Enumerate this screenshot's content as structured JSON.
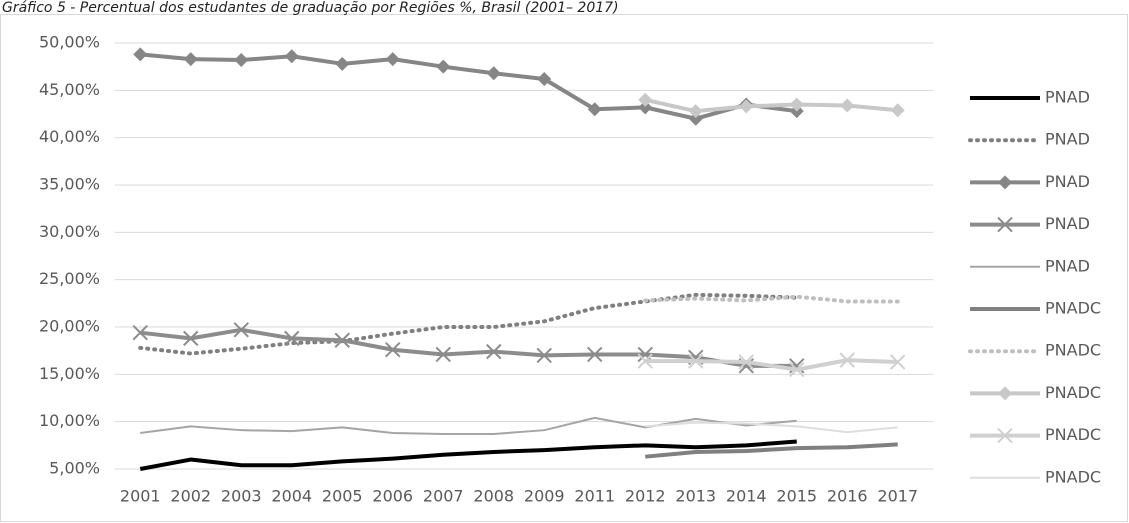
{
  "chart_data": {
    "type": "line",
    "title": "Gráfico 5 - Percentual dos estudantes de graduação por Regiões %, Brasil (2001– 2017)",
    "categories": [
      "2001",
      "2002",
      "2003",
      "2004",
      "2005",
      "2006",
      "2007",
      "2008",
      "2009",
      "2011",
      "2012",
      "2013",
      "2014",
      "2015",
      "2016",
      "2017"
    ],
    "ylim": [
      5,
      50
    ],
    "yticks": [
      {
        "value": 5,
        "label": "5,00%"
      },
      {
        "value": 10,
        "label": "10,00%"
      },
      {
        "value": 15,
        "label": "15,00%"
      },
      {
        "value": 20,
        "label": "20,00%"
      },
      {
        "value": 25,
        "label": "25,00%"
      },
      {
        "value": 30,
        "label": "30,00%"
      },
      {
        "value": 35,
        "label": "35,00%"
      },
      {
        "value": 40,
        "label": "40,00%"
      },
      {
        "value": 45,
        "label": "45,00%"
      },
      {
        "value": 50,
        "label": "50,00%"
      }
    ],
    "grid": true,
    "legend": "right",
    "series": [
      {
        "name": "PNAD",
        "color": "#000000",
        "style": "solid",
        "weight": "thick",
        "marker": "none",
        "values": [
          5.0,
          6.0,
          5.4,
          5.4,
          5.8,
          6.1,
          6.5,
          6.8,
          7.0,
          7.3,
          7.5,
          7.3,
          7.5,
          7.9,
          null,
          null
        ]
      },
      {
        "name": "PNAD",
        "color": "#7f7f7f",
        "style": "dotted",
        "weight": "thick",
        "marker": "none",
        "values": [
          17.8,
          17.2,
          17.7,
          18.3,
          18.5,
          19.3,
          20.0,
          20.0,
          20.6,
          22.0,
          22.7,
          23.4,
          23.3,
          23.1,
          null,
          null
        ]
      },
      {
        "name": "PNAD",
        "color": "#868686",
        "style": "solid",
        "weight": "thick",
        "marker": "diamond",
        "values": [
          48.8,
          48.3,
          48.2,
          48.6,
          47.8,
          48.3,
          47.5,
          46.8,
          46.2,
          43.0,
          43.2,
          42.0,
          43.5,
          42.8,
          null,
          null
        ]
      },
      {
        "name": "PNAD",
        "color": "#8c8c8c",
        "style": "solid",
        "weight": "thick",
        "marker": "x",
        "values": [
          19.4,
          18.8,
          19.7,
          18.8,
          18.6,
          17.6,
          17.1,
          17.4,
          17.0,
          17.1,
          17.1,
          16.8,
          15.9,
          15.9,
          null,
          null
        ]
      },
      {
        "name": "PNAD",
        "color": "#a5a5a5",
        "style": "solid",
        "weight": "thin",
        "marker": "none",
        "values": [
          8.8,
          9.5,
          9.1,
          9.0,
          9.4,
          8.8,
          8.7,
          8.7,
          9.1,
          10.4,
          9.4,
          10.3,
          9.6,
          10.1,
          null,
          null
        ]
      },
      {
        "name": "PNADC",
        "color": "#808080",
        "style": "solid",
        "weight": "thick",
        "marker": "none",
        "values": [
          null,
          null,
          null,
          null,
          null,
          null,
          null,
          null,
          null,
          null,
          6.3,
          6.8,
          6.9,
          7.2,
          7.3,
          7.6
        ]
      },
      {
        "name": "PNADC",
        "color": "#bfbfbf",
        "style": "dotted",
        "weight": "thick",
        "marker": "none",
        "values": [
          null,
          null,
          null,
          null,
          null,
          null,
          null,
          null,
          null,
          null,
          22.8,
          23.0,
          22.8,
          23.2,
          22.7,
          22.7
        ]
      },
      {
        "name": "PNADC",
        "color": "#c8c8c8",
        "style": "solid",
        "weight": "thick",
        "marker": "diamond",
        "values": [
          null,
          null,
          null,
          null,
          null,
          null,
          null,
          null,
          null,
          null,
          44.0,
          42.8,
          43.3,
          43.5,
          43.4,
          42.9
        ]
      },
      {
        "name": "PNADC",
        "color": "#d0d0d0",
        "style": "solid",
        "weight": "thick",
        "marker": "x",
        "values": [
          null,
          null,
          null,
          null,
          null,
          null,
          null,
          null,
          null,
          null,
          16.4,
          16.4,
          16.3,
          15.5,
          16.5,
          16.3
        ]
      },
      {
        "name": "PNADC",
        "color": "#dedede",
        "style": "solid",
        "weight": "thin",
        "marker": "none",
        "values": [
          null,
          null,
          null,
          null,
          null,
          null,
          null,
          null,
          null,
          null,
          9.5,
          9.9,
          9.8,
          9.5,
          8.9,
          9.4
        ]
      }
    ]
  }
}
